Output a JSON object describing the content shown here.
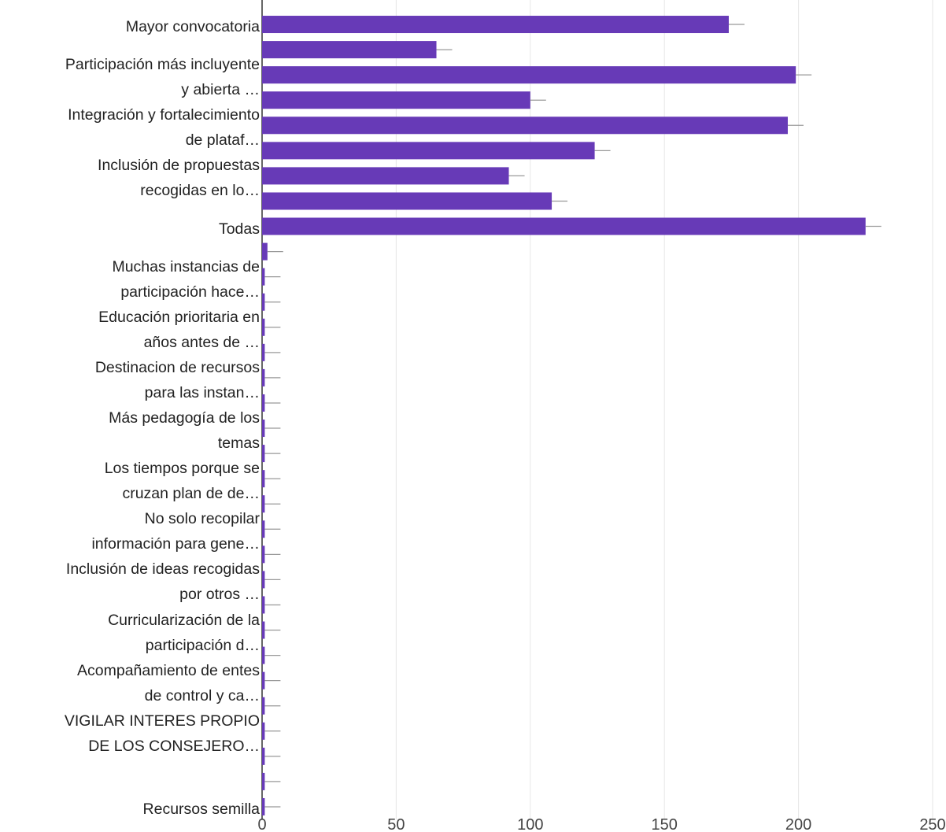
{
  "chart_data": {
    "type": "hbar",
    "categories": [
      "Mayor convocatoria",
      null,
      "Participación más incluyente\ny abierta …",
      null,
      "Integración y fortalecimiento\nde plataf…",
      null,
      "Inclusión de propuestas\nrecogidas en lo…",
      null,
      "Todas",
      null,
      "Muchas instancias de\nparticipación hace…",
      null,
      "Educación prioritaria en\naños antes de …",
      null,
      "Destinacion de recursos\npara las instan…",
      null,
      "Más pedagogía de los\ntemas",
      null,
      "Los tiempos porque se\ncruzan plan de de…",
      null,
      "No solo recopilar\ninformación para gene…",
      null,
      "Inclusión de ideas recogidas\npor otros …",
      null,
      "Curricularización de la\nparticipación d…",
      null,
      "Acompañamiento de entes\nde control y ca…",
      null,
      "VIGILAR INTERES PROPIO\nDE LOS CONSEJERO…",
      null,
      null,
      "Recursos semilla"
    ],
    "values": [
      174,
      65,
      199,
      100,
      196,
      124,
      92,
      108,
      225,
      2,
      1,
      1,
      1,
      1,
      1,
      1,
      1,
      1,
      1,
      1,
      1,
      1,
      1,
      1,
      1,
      1,
      1,
      1,
      1,
      1,
      1,
      1
    ],
    "color": "#673ab7",
    "xlim": [
      0,
      250
    ],
    "xticks": [
      0,
      50,
      100,
      150,
      200,
      250
    ],
    "grid": true
  }
}
